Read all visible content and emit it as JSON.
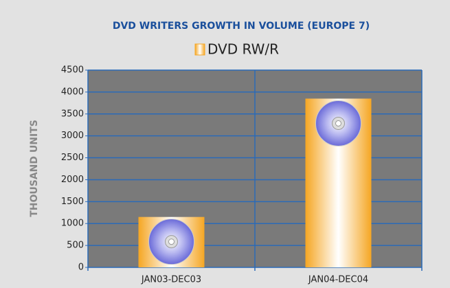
{
  "chart_data": {
    "type": "bar",
    "title": "DVD WRITERS GROWTH IN VOLUME (EUROPE 7)",
    "y_axis_label": "THOUSAND UNITS",
    "categories": [
      "JAN03-DEC03",
      "JAN04-DEC04"
    ],
    "series": [
      {
        "name": "DVD RW/R",
        "color": "#f5a623",
        "values": [
          1150,
          3850
        ]
      }
    ],
    "ylim": [
      0,
      4500
    ],
    "yticks": [
      0,
      500,
      1000,
      1500,
      2000,
      2500,
      3000,
      3500,
      4000,
      4500
    ],
    "grid": true,
    "legend": "top"
  }
}
